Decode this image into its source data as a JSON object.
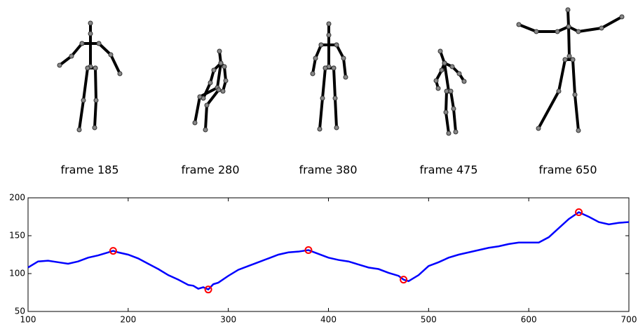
{
  "chart_data": {
    "type": "line",
    "panel_labels": [
      "frame 185",
      "frame 280",
      "frame 380",
      "frame 475",
      "frame 650"
    ],
    "x": [
      100,
      110,
      120,
      130,
      140,
      150,
      160,
      170,
      180,
      185,
      190,
      200,
      210,
      220,
      230,
      240,
      250,
      260,
      265,
      270,
      275,
      280,
      285,
      290,
      300,
      310,
      320,
      330,
      340,
      350,
      360,
      370,
      380,
      390,
      400,
      410,
      420,
      430,
      440,
      450,
      460,
      470,
      475,
      480,
      490,
      500,
      510,
      520,
      530,
      540,
      550,
      560,
      570,
      580,
      590,
      600,
      610,
      620,
      630,
      640,
      650,
      660,
      670,
      680,
      690,
      700
    ],
    "series": [
      {
        "color": "#0000ff",
        "values": [
          108,
          116,
          117,
          115,
          113,
          116,
          121,
          124,
          128,
          130,
          128,
          125,
          120,
          113,
          106,
          98,
          92,
          85,
          84,
          80,
          82,
          79,
          86,
          88,
          97,
          105,
          110,
          115,
          120,
          125,
          128,
          129,
          131,
          126,
          121,
          118,
          116,
          112,
          108,
          106,
          101,
          97,
          92,
          90,
          98,
          110,
          115,
          121,
          125,
          128,
          131,
          134,
          136,
          139,
          141,
          141,
          141,
          148,
          160,
          172,
          181,
          175,
          168,
          165,
          167,
          168
        ]
      }
    ],
    "markers": {
      "color": "#ff0000",
      "x": [
        185,
        280,
        380,
        475,
        650
      ],
      "y": [
        130,
        79,
        131,
        92,
        181
      ]
    },
    "xlim": [
      100,
      700
    ],
    "ylim": [
      50,
      200
    ],
    "xticks": [
      100,
      200,
      300,
      400,
      500,
      600,
      700
    ],
    "yticks": [
      50,
      100,
      150,
      200
    ]
  }
}
